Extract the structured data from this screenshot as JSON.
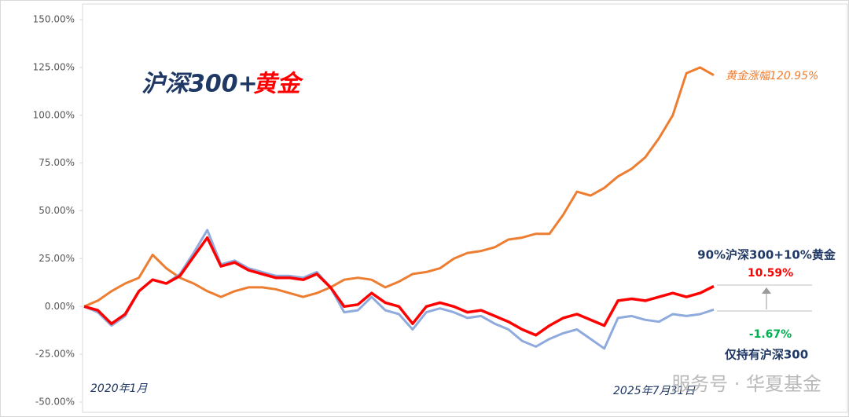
{
  "chart_data": {
    "type": "line",
    "title": "沪深300+",
    "title_highlight": "黄金",
    "categories": [
      null,
      null,
      null,
      null,
      null,
      null,
      null,
      null,
      null,
      null,
      null,
      null,
      null,
      null,
      null,
      null,
      null,
      null,
      null,
      null,
      null,
      null,
      null,
      null,
      null,
      null,
      null,
      null,
      null,
      null,
      null,
      null,
      null,
      null,
      null,
      null,
      null,
      null,
      null,
      null,
      null,
      null,
      null,
      null,
      null,
      null,
      null
    ],
    "series": [
      {
        "color": "#ed7d31",
        "values": [
          0,
          3,
          8,
          12,
          15,
          27,
          20,
          15,
          12,
          8,
          5,
          8,
          10,
          10,
          9,
          7,
          5,
          7,
          10,
          14,
          15,
          14,
          10,
          13,
          17,
          18,
          20,
          25,
          28,
          29,
          31,
          35,
          36,
          38,
          38,
          48,
          60,
          58,
          62,
          68,
          72,
          78,
          88,
          100,
          122,
          125,
          120.95
        ]
      },
      {
        "name": "仅持有沪深300",
        "color": "#8faadc",
        "values": [
          0,
          -3,
          -10,
          -5,
          8,
          14,
          12,
          17,
          28,
          40,
          22,
          24,
          20,
          18,
          16,
          16,
          15,
          18,
          10,
          -3,
          -2,
          5,
          -2,
          -4,
          -12,
          -3,
          -1,
          -3,
          -6,
          -5,
          -9,
          -12,
          -18,
          -21,
          -17,
          -14,
          -12,
          -17,
          -22,
          -6,
          -5,
          -7,
          -8,
          -4,
          -5,
          -4,
          -1.67
        ],
        "end_label": "-1.67%"
      },
      {
        "name": "90%沪深300+10%黄金",
        "color": "#ff0000",
        "values": [
          0,
          -2,
          -9,
          -4,
          8,
          14,
          12,
          16,
          26,
          36,
          21,
          23,
          19,
          17,
          15,
          15,
          14,
          17,
          10,
          0,
          1,
          7,
          2,
          0,
          -9,
          0,
          2,
          0,
          -3,
          -2,
          -5,
          -8,
          -12,
          -15,
          -10,
          -6,
          -4,
          -7,
          -10,
          3,
          4,
          3,
          5,
          7,
          5,
          7,
          10.59
        ],
        "end_label": "10.59%"
      }
    ],
    "annotations": [
      "黄金涨幅120.95%",
      "2020年1月",
      "2025年7月31日"
    ],
    "watermark": "服务号 · 华夏基金",
    "ylim": [
      -50,
      150
    ],
    "yticks": [
      {
        "value": -50,
        "label": "-50.00%"
      },
      {
        "value": -25,
        "label": "-25.00%"
      },
      {
        "value": 0,
        "label": "0.00%"
      },
      {
        "value": 25,
        "label": "25.00%"
      },
      {
        "value": 50,
        "label": "50.00%"
      },
      {
        "value": 75,
        "label": "75.00%"
      },
      {
        "value": 100,
        "label": "100.00%"
      },
      {
        "value": 125,
        "label": "125.00%"
      },
      {
        "value": 150,
        "label": "150.00%"
      }
    ],
    "grid": false
  }
}
